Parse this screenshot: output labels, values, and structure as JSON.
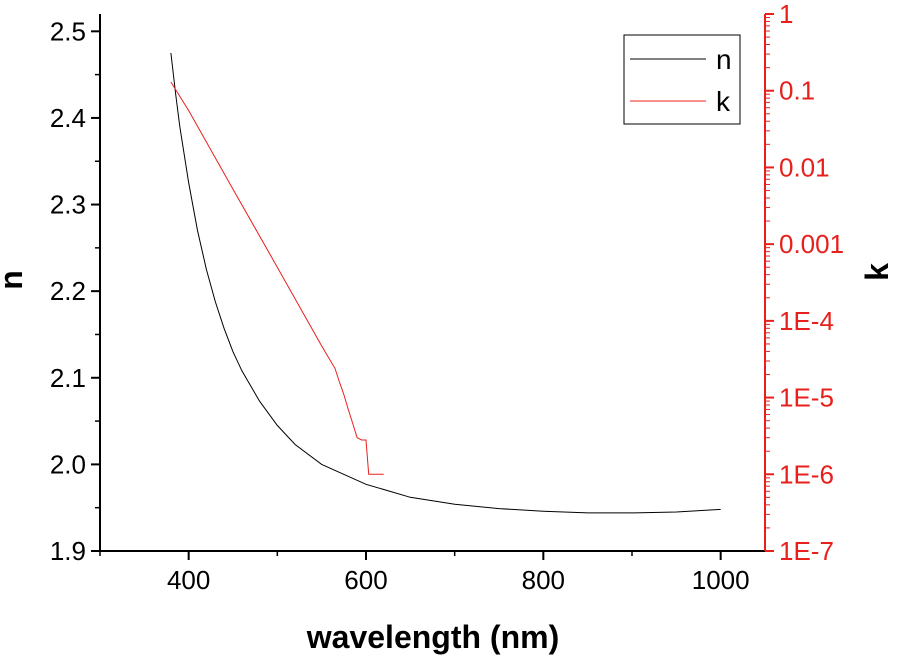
{
  "chart_data": {
    "type": "line",
    "title": "",
    "xlabel": "wavelength (nm)",
    "ylabel_left": "n",
    "ylabel_right": "k",
    "xlim": [
      300,
      1050
    ],
    "ylim_left": [
      1.9,
      2.52
    ],
    "ylim_right": [
      1e-07,
      1
    ],
    "right_axis_scale": "log",
    "x_ticks": [
      400,
      600,
      800,
      1000
    ],
    "x_tick_labels": [
      "400",
      "600",
      "800",
      "1000"
    ],
    "y_left_ticks": [
      1.9,
      2.0,
      2.1,
      2.2,
      2.3,
      2.4,
      2.5
    ],
    "y_left_tick_labels": [
      "1.9",
      "2.0",
      "2.1",
      "2.2",
      "2.3",
      "2.4",
      "2.5"
    ],
    "y_right_ticks": [
      1e-07,
      1e-06,
      1e-05,
      0.0001,
      0.001,
      0.01,
      0.1,
      1
    ],
    "y_right_tick_labels": [
      "1E-7",
      "1E-6",
      "1E-5",
      "1E-4",
      "0.001",
      "0.01",
      "0.1",
      "1"
    ],
    "legend_position": "top-right",
    "grid": false,
    "series": [
      {
        "name": "n",
        "axis": "left",
        "color": "#000000",
        "x": [
          380,
          385,
          390,
          400,
          410,
          420,
          430,
          440,
          450,
          460,
          480,
          500,
          520,
          550,
          600,
          650,
          700,
          750,
          800,
          850,
          900,
          950,
          1000
        ],
        "y": [
          2.475,
          2.43,
          2.39,
          2.325,
          2.27,
          2.225,
          2.188,
          2.157,
          2.13,
          2.108,
          2.073,
          2.045,
          2.023,
          2.0,
          1.977,
          1.962,
          1.954,
          1.949,
          1.946,
          1.944,
          1.944,
          1.945,
          1.948
        ]
      },
      {
        "name": "k",
        "axis": "right",
        "color": "#e8201c",
        "x": [
          380,
          400,
          450,
          500,
          550,
          565,
          570,
          575,
          580,
          585,
          590,
          595,
          600,
          603,
          620
        ],
        "y": [
          0.13,
          0.055,
          0.0052,
          0.0005,
          4.7e-05,
          2.4e-05,
          1.6e-05,
          1.1e-05,
          7e-06,
          4.6e-06,
          3e-06,
          2.8e-06,
          2.8e-06,
          1e-06,
          1e-06
        ]
      }
    ]
  }
}
